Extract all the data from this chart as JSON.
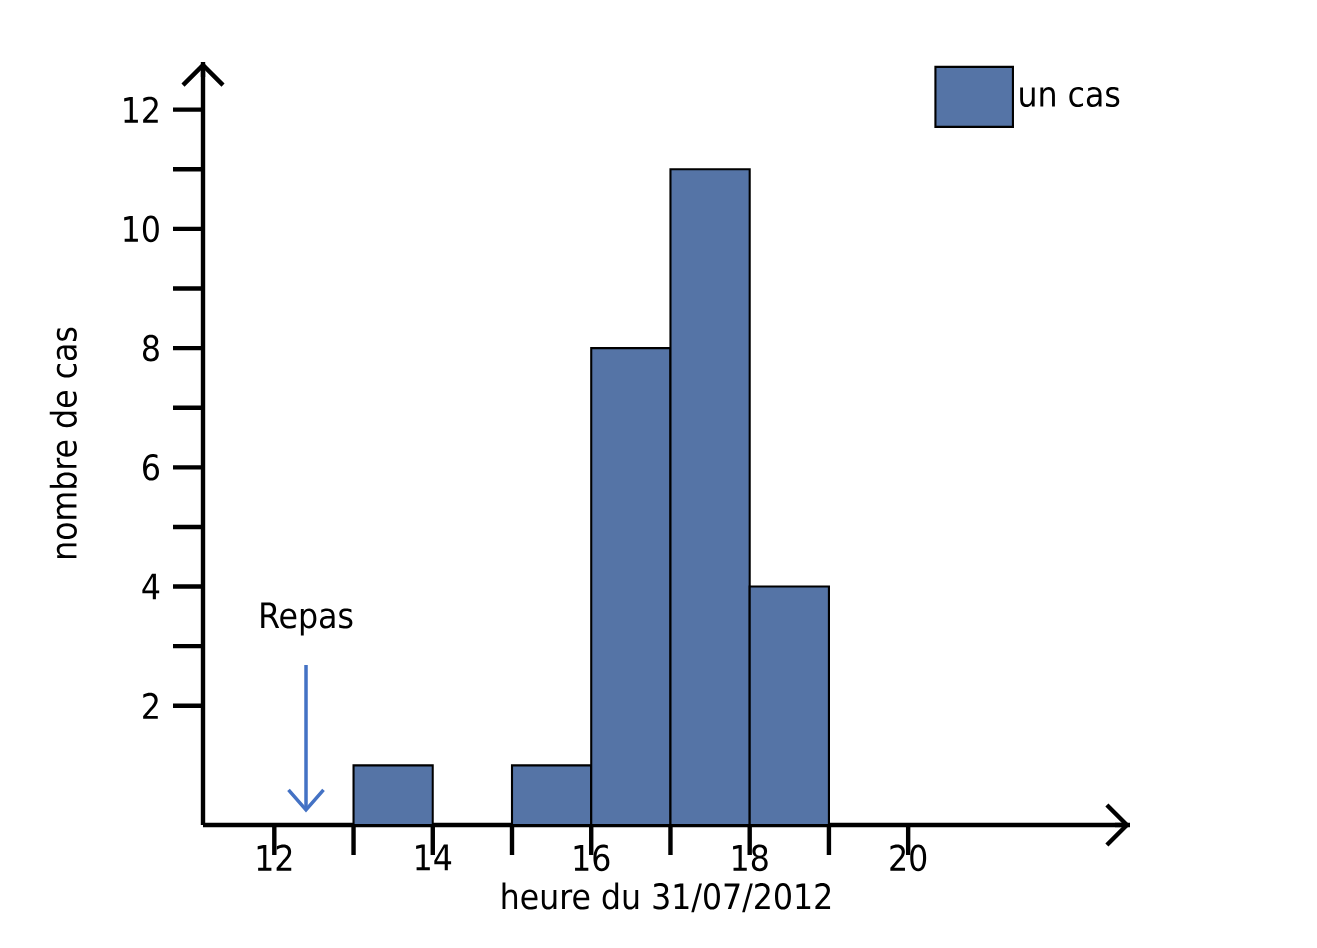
{
  "chart_data": {
    "type": "histogram",
    "xlabel": "heure du 31/07/2012",
    "ylabel": "nombre de cas",
    "bins": [
      13,
      14,
      15,
      16,
      17,
      18,
      19
    ],
    "series": [
      {
        "name": "un cas",
        "color": "#5574a6",
        "values": [
          1,
          0,
          1,
          8,
          11,
          4
        ]
      }
    ],
    "xlim": [
      11.1,
      22.8
    ],
    "ylim": [
      0,
      12.8
    ],
    "xticks": [
      12,
      14,
      16,
      18,
      20
    ],
    "yticks": [
      2,
      4,
      6,
      8,
      10,
      12
    ],
    "annotations": [
      "Repas"
    ],
    "legend": "top right"
  }
}
